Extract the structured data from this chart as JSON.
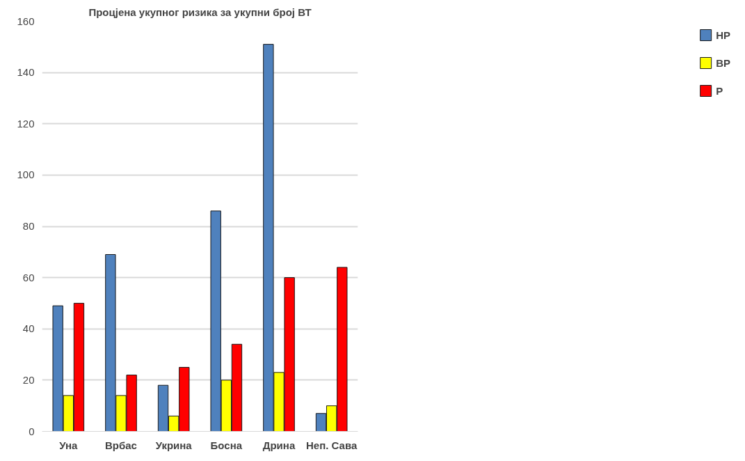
{
  "chart_data": {
    "type": "bar",
    "title": "Процјена укупног ризика за укупни број ВТ",
    "categories": [
      "Уна",
      "Врбас",
      "Укрина",
      "Босна",
      "Дрина",
      "Неп. Сава"
    ],
    "series": [
      {
        "name": "НР",
        "color": "#4f81bd",
        "values": [
          49,
          69,
          18,
          86,
          151,
          7
        ]
      },
      {
        "name": "ВР",
        "color": "#ffff00",
        "values": [
          14,
          14,
          6,
          20,
          23,
          10
        ]
      },
      {
        "name": "Р",
        "color": "#ff0000",
        "values": [
          50,
          22,
          25,
          34,
          60,
          64
        ]
      }
    ],
    "ylim": [
      0,
      160
    ],
    "yticks": [
      0,
      20,
      40,
      60,
      80,
      100,
      120,
      140,
      160
    ],
    "grid": "y",
    "legend": "right"
  }
}
